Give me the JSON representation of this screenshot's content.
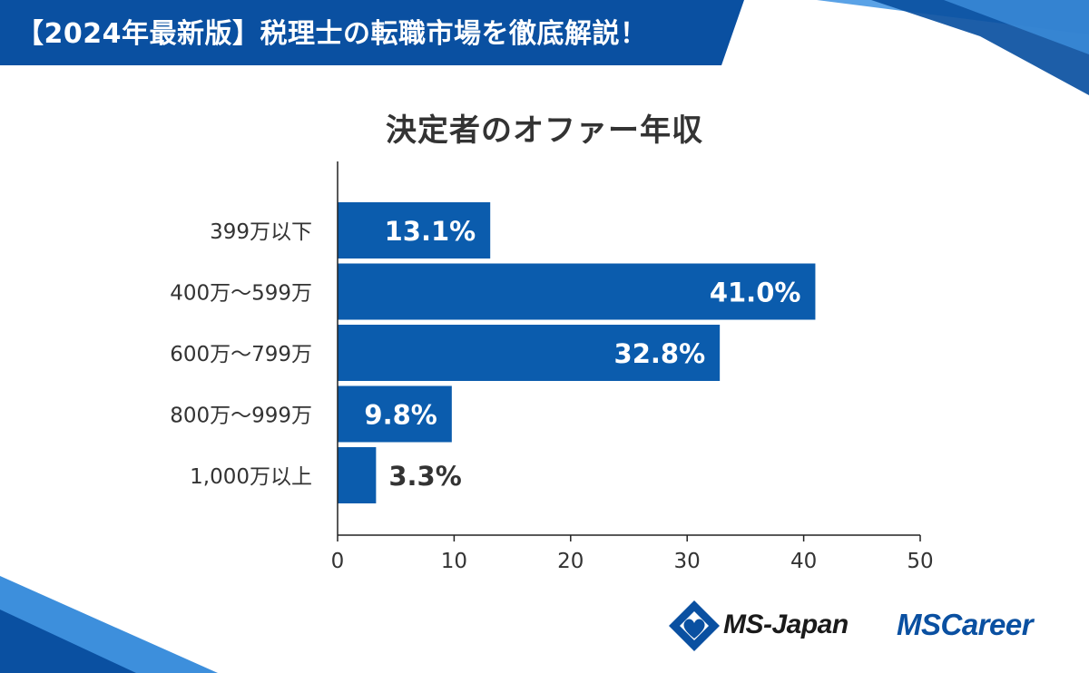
{
  "banner": {
    "title": "【2024年最新版】税理士の転職市場を徹底解説！"
  },
  "colors": {
    "bar": "#0b5cad",
    "banner": "#0a50a1",
    "accent": "#3d8fdc",
    "axis": "#222222",
    "label": "#333333"
  },
  "chart_data": {
    "type": "bar",
    "orientation": "horizontal",
    "title": "決定者のオファー年収",
    "categories": [
      "399万以下",
      "400万〜599万",
      "600万〜799万",
      "800万〜999万",
      "1,000万以上"
    ],
    "values": [
      13.1,
      41.0,
      32.8,
      9.8,
      3.3
    ],
    "data_labels": [
      "13.1%",
      "41.0%",
      "32.8%",
      "9.8%",
      "3.3%"
    ],
    "xlim": [
      0,
      50
    ],
    "x_ticks": [
      0,
      10,
      20,
      30,
      40,
      50
    ],
    "xlabel": "",
    "ylabel": "",
    "grid": false
  },
  "logos": {
    "ms_japan": "MS-Japan",
    "ms_career": "MSCareer"
  }
}
